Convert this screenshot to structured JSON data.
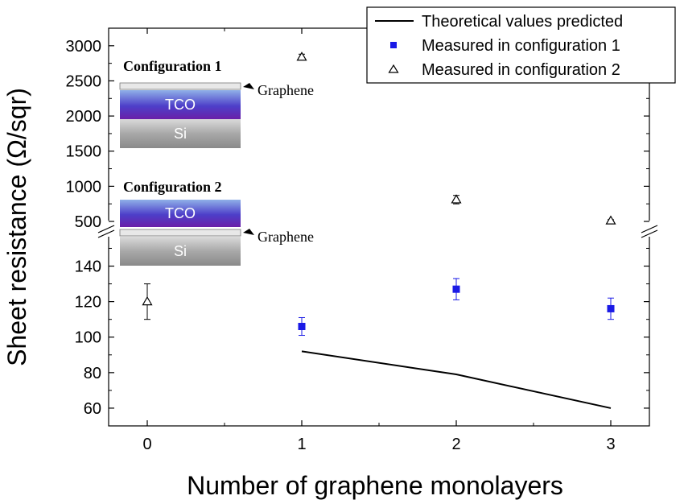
{
  "chart_data": {
    "type": "scatter",
    "xlabel": "Number of graphene monolayers",
    "ylabel": "Sheet resistance (Ω/sqr)",
    "x_ticks": [
      0,
      1,
      2,
      3
    ],
    "xlim": [
      -0.25,
      3.25
    ],
    "y_axis_break": true,
    "upper_panel": {
      "ylim": [
        420,
        3250
      ],
      "ticks": [
        500,
        1000,
        1500,
        2000,
        2500,
        3000
      ]
    },
    "lower_panel": {
      "ylim": [
        50,
        162
      ],
      "ticks": [
        60,
        80,
        100,
        120,
        140
      ]
    },
    "series": [
      {
        "name": "Theoretical values predicted",
        "kind": "line",
        "color": "#000000",
        "points": [
          {
            "x": 1,
            "y": 92
          },
          {
            "x": 2,
            "y": 79
          },
          {
            "x": 3,
            "y": 60
          }
        ]
      },
      {
        "name": "Measured in configuration 1",
        "kind": "square",
        "color": "#1a1ae6",
        "points": [
          {
            "x": 1,
            "y": 106,
            "err": 5
          },
          {
            "x": 2,
            "y": 127,
            "err": 6
          },
          {
            "x": 3,
            "y": 116,
            "err": 6
          }
        ]
      },
      {
        "name": "Measured in configuration 2",
        "kind": "triangle",
        "color": "#000000",
        "points": [
          {
            "x": 0,
            "y": 120,
            "err": 10
          },
          {
            "x": 1,
            "y": 2840,
            "err": 40
          },
          {
            "x": 2,
            "y": 810,
            "err": 60
          },
          {
            "x": 3,
            "y": 510,
            "err": 15
          }
        ]
      }
    ],
    "legend_position": "top-right",
    "insets": [
      {
        "title": "Configuration 1",
        "layers": [
          "Graphene",
          "TCO",
          "Si"
        ]
      },
      {
        "title": "Configuration 2",
        "layers": [
          "TCO",
          "Graphene",
          "Si"
        ]
      }
    ]
  }
}
